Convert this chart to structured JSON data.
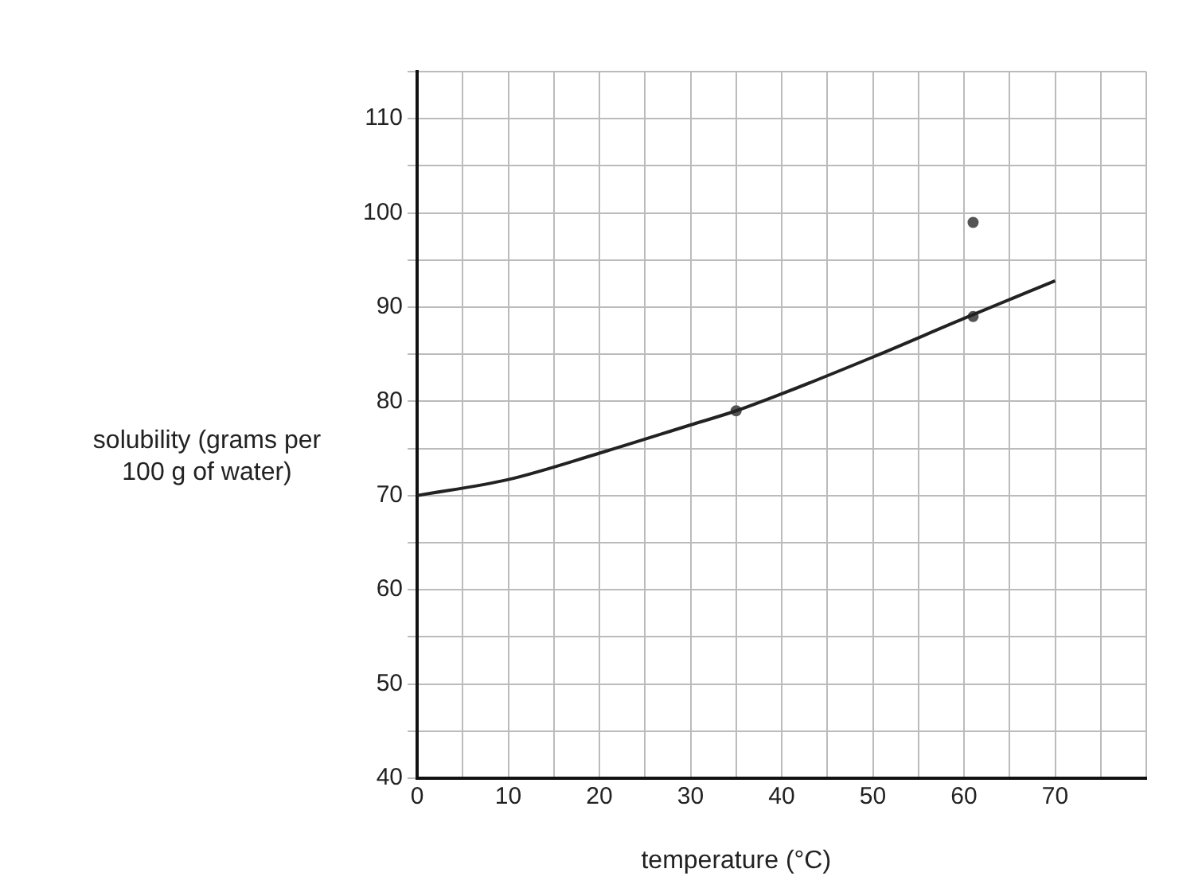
{
  "chart_data": {
    "type": "line",
    "xlabel": "temperature (°C)",
    "ylabel": "solubility (grams per 100 g of water)",
    "xlim": [
      0,
      80
    ],
    "ylim": [
      40,
      115
    ],
    "xticks": [
      0,
      {
        "value": 5,
        "label": null
      },
      10,
      {
        "value": 15,
        "label": null
      },
      20,
      {
        "value": 25,
        "label": null
      },
      30,
      {
        "value": 35,
        "label": null
      },
      40,
      {
        "value": 45,
        "label": null
      },
      50,
      {
        "value": 55,
        "label": null
      },
      60,
      {
        "value": 65,
        "label": null
      },
      70,
      {
        "value": 75,
        "label": null
      },
      {
        "value": 80,
        "label": null
      }
    ],
    "yticks": [
      40,
      {
        "value": 45,
        "label": null
      },
      50,
      {
        "value": 55,
        "label": null
      },
      60,
      {
        "value": 65,
        "label": null
      },
      70,
      {
        "value": 75,
        "label": null
      },
      80,
      {
        "value": 85,
        "label": null
      },
      90,
      {
        "value": 95,
        "label": null
      },
      100,
      {
        "value": 105,
        "label": null
      },
      110,
      {
        "value": 115,
        "label": null
      }
    ],
    "grid": true,
    "series": [
      {
        "marker": "none",
        "color": "#222222",
        "x": [
          0,
          10,
          20,
          30,
          35,
          40,
          50,
          60,
          70
        ],
        "values": [
          70,
          71.7,
          74.5,
          77.5,
          79,
          80.8,
          84.7,
          88.8,
          92.8
        ]
      },
      {
        "type": "scatter",
        "marker": "circle",
        "color": "#555555",
        "x": [
          35,
          61,
          61
        ],
        "values": [
          79,
          89,
          99
        ]
      }
    ]
  }
}
